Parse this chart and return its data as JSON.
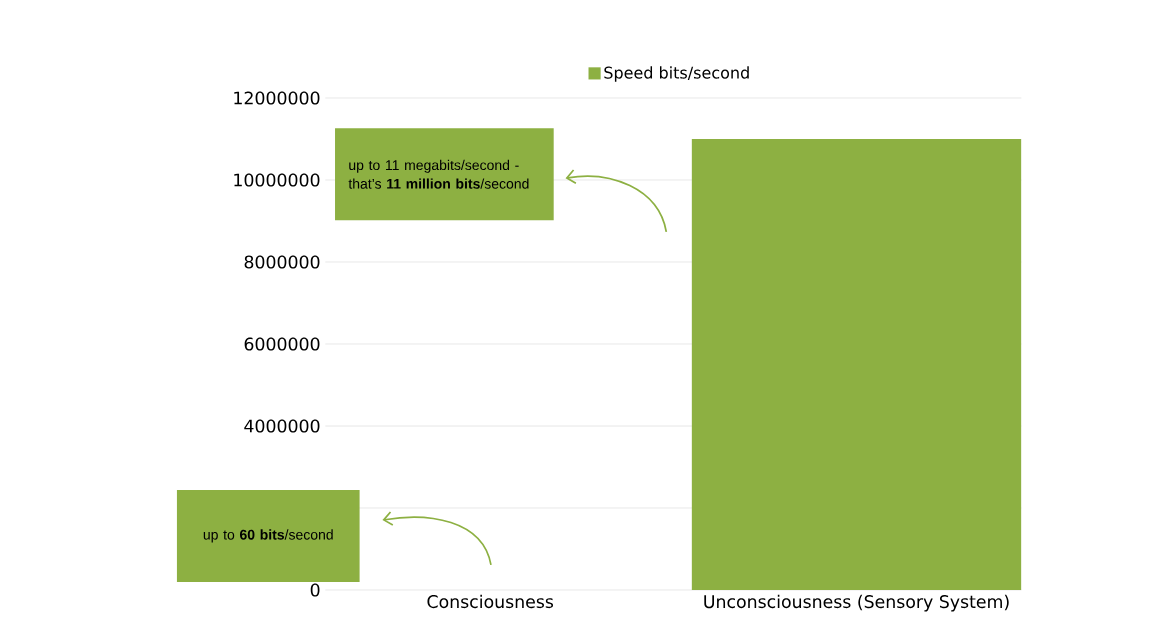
{
  "chart_data": {
    "type": "bar",
    "categories": [
      "Consciousness",
      "Unconsciousness (Sensory System)"
    ],
    "series": [
      {
        "name": "Speed bits/second",
        "color": "#8db042",
        "values": [
          60,
          11000000
        ]
      }
    ],
    "ylim": [
      0,
      12000000
    ],
    "yticks": [
      0,
      {
        "value": 2000000,
        "label": null
      },
      4000000,
      6000000,
      8000000,
      10000000,
      12000000
    ],
    "grid": "y",
    "legend": "top",
    "annotations": [
      "up to 11 megabits/second - that’s **11 million bits**/second",
      "up to **60 bits**/second"
    ]
  }
}
